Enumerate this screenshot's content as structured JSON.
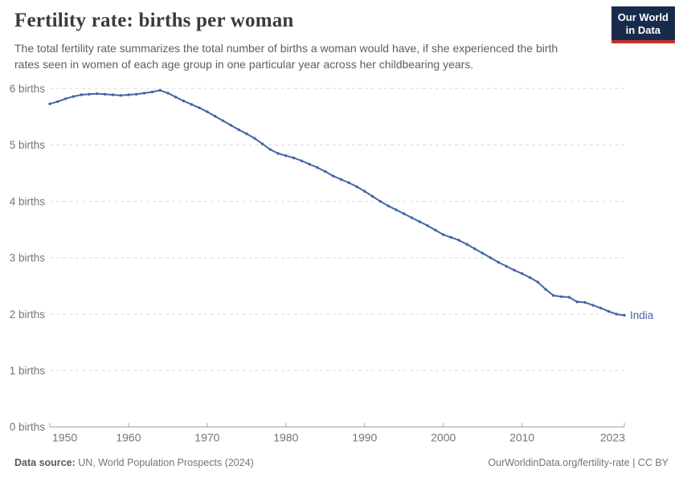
{
  "header": {
    "title": "Fertility rate: births per woman",
    "subtitle": "The total fertility rate summarizes the total number of births a woman would have, if she experienced the birth rates seen in women of each age group in one particular year across her childbearing years.",
    "logo": {
      "line1": "Our World",
      "line2": "in Data",
      "bg": "#182b4d",
      "stripe": "#c7302b"
    }
  },
  "chart_data": {
    "type": "line",
    "title": "Fertility rate: births per woman",
    "xlabel": "",
    "ylabel": "births",
    "ylim": [
      0,
      6
    ],
    "grid": "horizontal-dashed",
    "legend_position": "end-of-line-label",
    "x": [
      1950,
      1951,
      1952,
      1953,
      1954,
      1955,
      1956,
      1957,
      1958,
      1959,
      1960,
      1961,
      1962,
      1963,
      1964,
      1965,
      1966,
      1967,
      1968,
      1969,
      1970,
      1971,
      1972,
      1973,
      1974,
      1975,
      1976,
      1977,
      1978,
      1979,
      1980,
      1981,
      1982,
      1983,
      1984,
      1985,
      1986,
      1987,
      1988,
      1989,
      1990,
      1991,
      1992,
      1993,
      1994,
      1995,
      1996,
      1997,
      1998,
      1999,
      2000,
      2001,
      2002,
      2003,
      2004,
      2005,
      2006,
      2007,
      2008,
      2009,
      2010,
      2011,
      2012,
      2013,
      2014,
      2015,
      2016,
      2017,
      2018,
      2019,
      2020,
      2021,
      2022,
      2023
    ],
    "series": [
      {
        "name": "India",
        "color": "#4565a3",
        "values": [
          5.73,
          5.77,
          5.82,
          5.86,
          5.89,
          5.9,
          5.91,
          5.9,
          5.89,
          5.88,
          5.89,
          5.9,
          5.92,
          5.94,
          5.97,
          5.92,
          5.85,
          5.78,
          5.72,
          5.66,
          5.59,
          5.51,
          5.43,
          5.35,
          5.27,
          5.2,
          5.12,
          5.02,
          4.92,
          4.85,
          4.81,
          4.77,
          4.72,
          4.66,
          4.6,
          4.53,
          4.45,
          4.39,
          4.33,
          4.26,
          4.18,
          4.09,
          4.0,
          3.92,
          3.85,
          3.78,
          3.71,
          3.64,
          3.57,
          3.49,
          3.41,
          3.36,
          3.31,
          3.24,
          3.16,
          3.08,
          3.0,
          2.92,
          2.85,
          2.78,
          2.72,
          2.65,
          2.57,
          2.44,
          2.33,
          2.31,
          2.3,
          2.22,
          2.21,
          2.16,
          2.11,
          2.05,
          2.0,
          1.98
        ]
      }
    ],
    "yticks": {
      "values": [
        0,
        1,
        2,
        3,
        4,
        5,
        6
      ],
      "labels": [
        "0 births",
        "1 births",
        "2 births",
        "3 births",
        "4 births",
        "5 births",
        "6 births"
      ]
    },
    "xticks": [
      1950,
      1960,
      1970,
      1980,
      1990,
      2000,
      2010,
      2023
    ],
    "colors": {
      "grid": "#d9d9d9",
      "axis": "#a3a3a3",
      "tick_label": "#757575"
    }
  },
  "footer": {
    "source_label": "Data source:",
    "source_text": " UN, World Population Prospects (2024)",
    "rights": "OurWorldinData.org/fertility-rate | CC BY"
  }
}
